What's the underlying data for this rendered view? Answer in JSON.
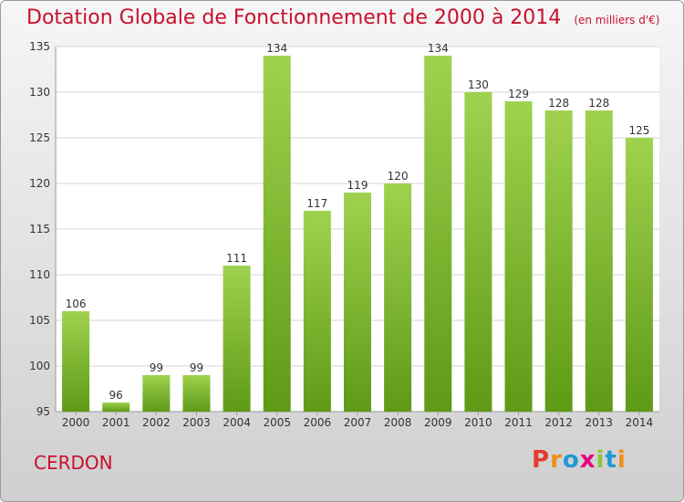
{
  "header": {
    "title": "Dotation Globale de Fonctionnement de 2000 à 2014",
    "unit": "(en milliers d'€)"
  },
  "footer": {
    "commune": "CERDON",
    "logo": [
      "P",
      "r",
      "o",
      "x",
      "i",
      "t",
      "i"
    ]
  },
  "colors": {
    "bar_top": "#9fd24f",
    "bar_bottom": "#5e9a16",
    "title": "#c8102e"
  },
  "chart_data": {
    "type": "bar",
    "title": "Dotation Globale de Fonctionnement de 2000 à 2014",
    "subtitle": "(en milliers d'€)",
    "categories": [
      "2000",
      "2001",
      "2002",
      "2003",
      "2004",
      "2005",
      "2006",
      "2007",
      "2008",
      "2009",
      "2010",
      "2011",
      "2012",
      "2013",
      "2014"
    ],
    "values": [
      106,
      96,
      99,
      99,
      111,
      134,
      117,
      119,
      120,
      134,
      130,
      129,
      128,
      128,
      125
    ],
    "ylim": [
      95,
      135
    ],
    "yticks": [
      95,
      100,
      105,
      110,
      115,
      120,
      125,
      130,
      135
    ],
    "grid": true,
    "data_labels": true
  }
}
